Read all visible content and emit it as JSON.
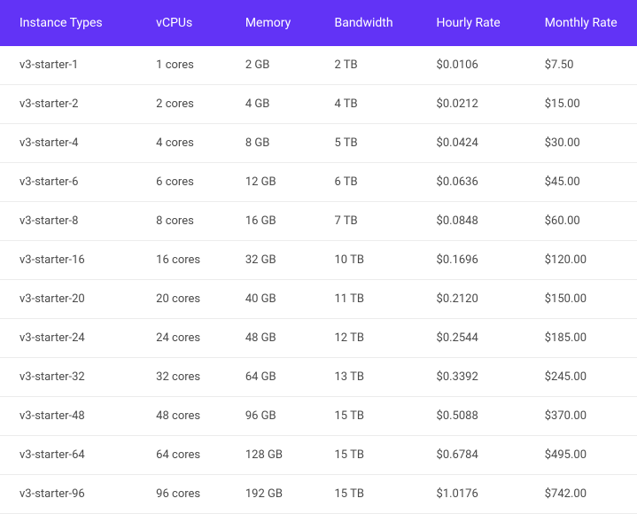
{
  "pricing_table": {
    "type": "table",
    "header_bg": "#6233f6",
    "header_color": "#ffffff",
    "row_border_color": "#ececec",
    "cell_text_color": "#4a4a4a",
    "columns": [
      {
        "key": "instance",
        "label": "Instance Types"
      },
      {
        "key": "vcpus",
        "label": "vCPUs"
      },
      {
        "key": "memory",
        "label": "Memory"
      },
      {
        "key": "bandwidth",
        "label": "Bandwidth"
      },
      {
        "key": "hourly",
        "label": "Hourly Rate"
      },
      {
        "key": "monthly",
        "label": "Monthly Rate"
      }
    ],
    "rows": [
      {
        "instance": "v3-starter-1",
        "vcpus": "1 cores",
        "memory": "2 GB",
        "bandwidth": "2 TB",
        "hourly": "$0.0106",
        "monthly": "$7.50"
      },
      {
        "instance": "v3-starter-2",
        "vcpus": "2 cores",
        "memory": "4 GB",
        "bandwidth": "4 TB",
        "hourly": "$0.0212",
        "monthly": "$15.00"
      },
      {
        "instance": "v3-starter-4",
        "vcpus": "4 cores",
        "memory": "8 GB",
        "bandwidth": "5 TB",
        "hourly": "$0.0424",
        "monthly": "$30.00"
      },
      {
        "instance": "v3-starter-6",
        "vcpus": "6 cores",
        "memory": "12 GB",
        "bandwidth": "6 TB",
        "hourly": "$0.0636",
        "monthly": "$45.00"
      },
      {
        "instance": "v3-starter-8",
        "vcpus": "8 cores",
        "memory": "16 GB",
        "bandwidth": "7 TB",
        "hourly": "$0.0848",
        "monthly": "$60.00"
      },
      {
        "instance": "v3-starter-16",
        "vcpus": "16 cores",
        "memory": "32 GB",
        "bandwidth": "10 TB",
        "hourly": "$0.1696",
        "monthly": "$120.00"
      },
      {
        "instance": "v3-starter-20",
        "vcpus": "20 cores",
        "memory": "40 GB",
        "bandwidth": "11 TB",
        "hourly": "$0.2120",
        "monthly": "$150.00"
      },
      {
        "instance": "v3-starter-24",
        "vcpus": "24 cores",
        "memory": "48 GB",
        "bandwidth": "12 TB",
        "hourly": "$0.2544",
        "monthly": "$185.00"
      },
      {
        "instance": "v3-starter-32",
        "vcpus": "32 cores",
        "memory": "64 GB",
        "bandwidth": "13 TB",
        "hourly": "$0.3392",
        "monthly": "$245.00"
      },
      {
        "instance": "v3-starter-48",
        "vcpus": "48 cores",
        "memory": "96 GB",
        "bandwidth": "15 TB",
        "hourly": "$0.5088",
        "monthly": "$370.00"
      },
      {
        "instance": "v3-starter-64",
        "vcpus": "64 cores",
        "memory": "128 GB",
        "bandwidth": "15 TB",
        "hourly": "$0.6784",
        "monthly": "$495.00"
      },
      {
        "instance": "v3-starter-96",
        "vcpus": "96 cores",
        "memory": "192 GB",
        "bandwidth": "15 TB",
        "hourly": "$1.0176",
        "monthly": "$742.00"
      }
    ]
  }
}
